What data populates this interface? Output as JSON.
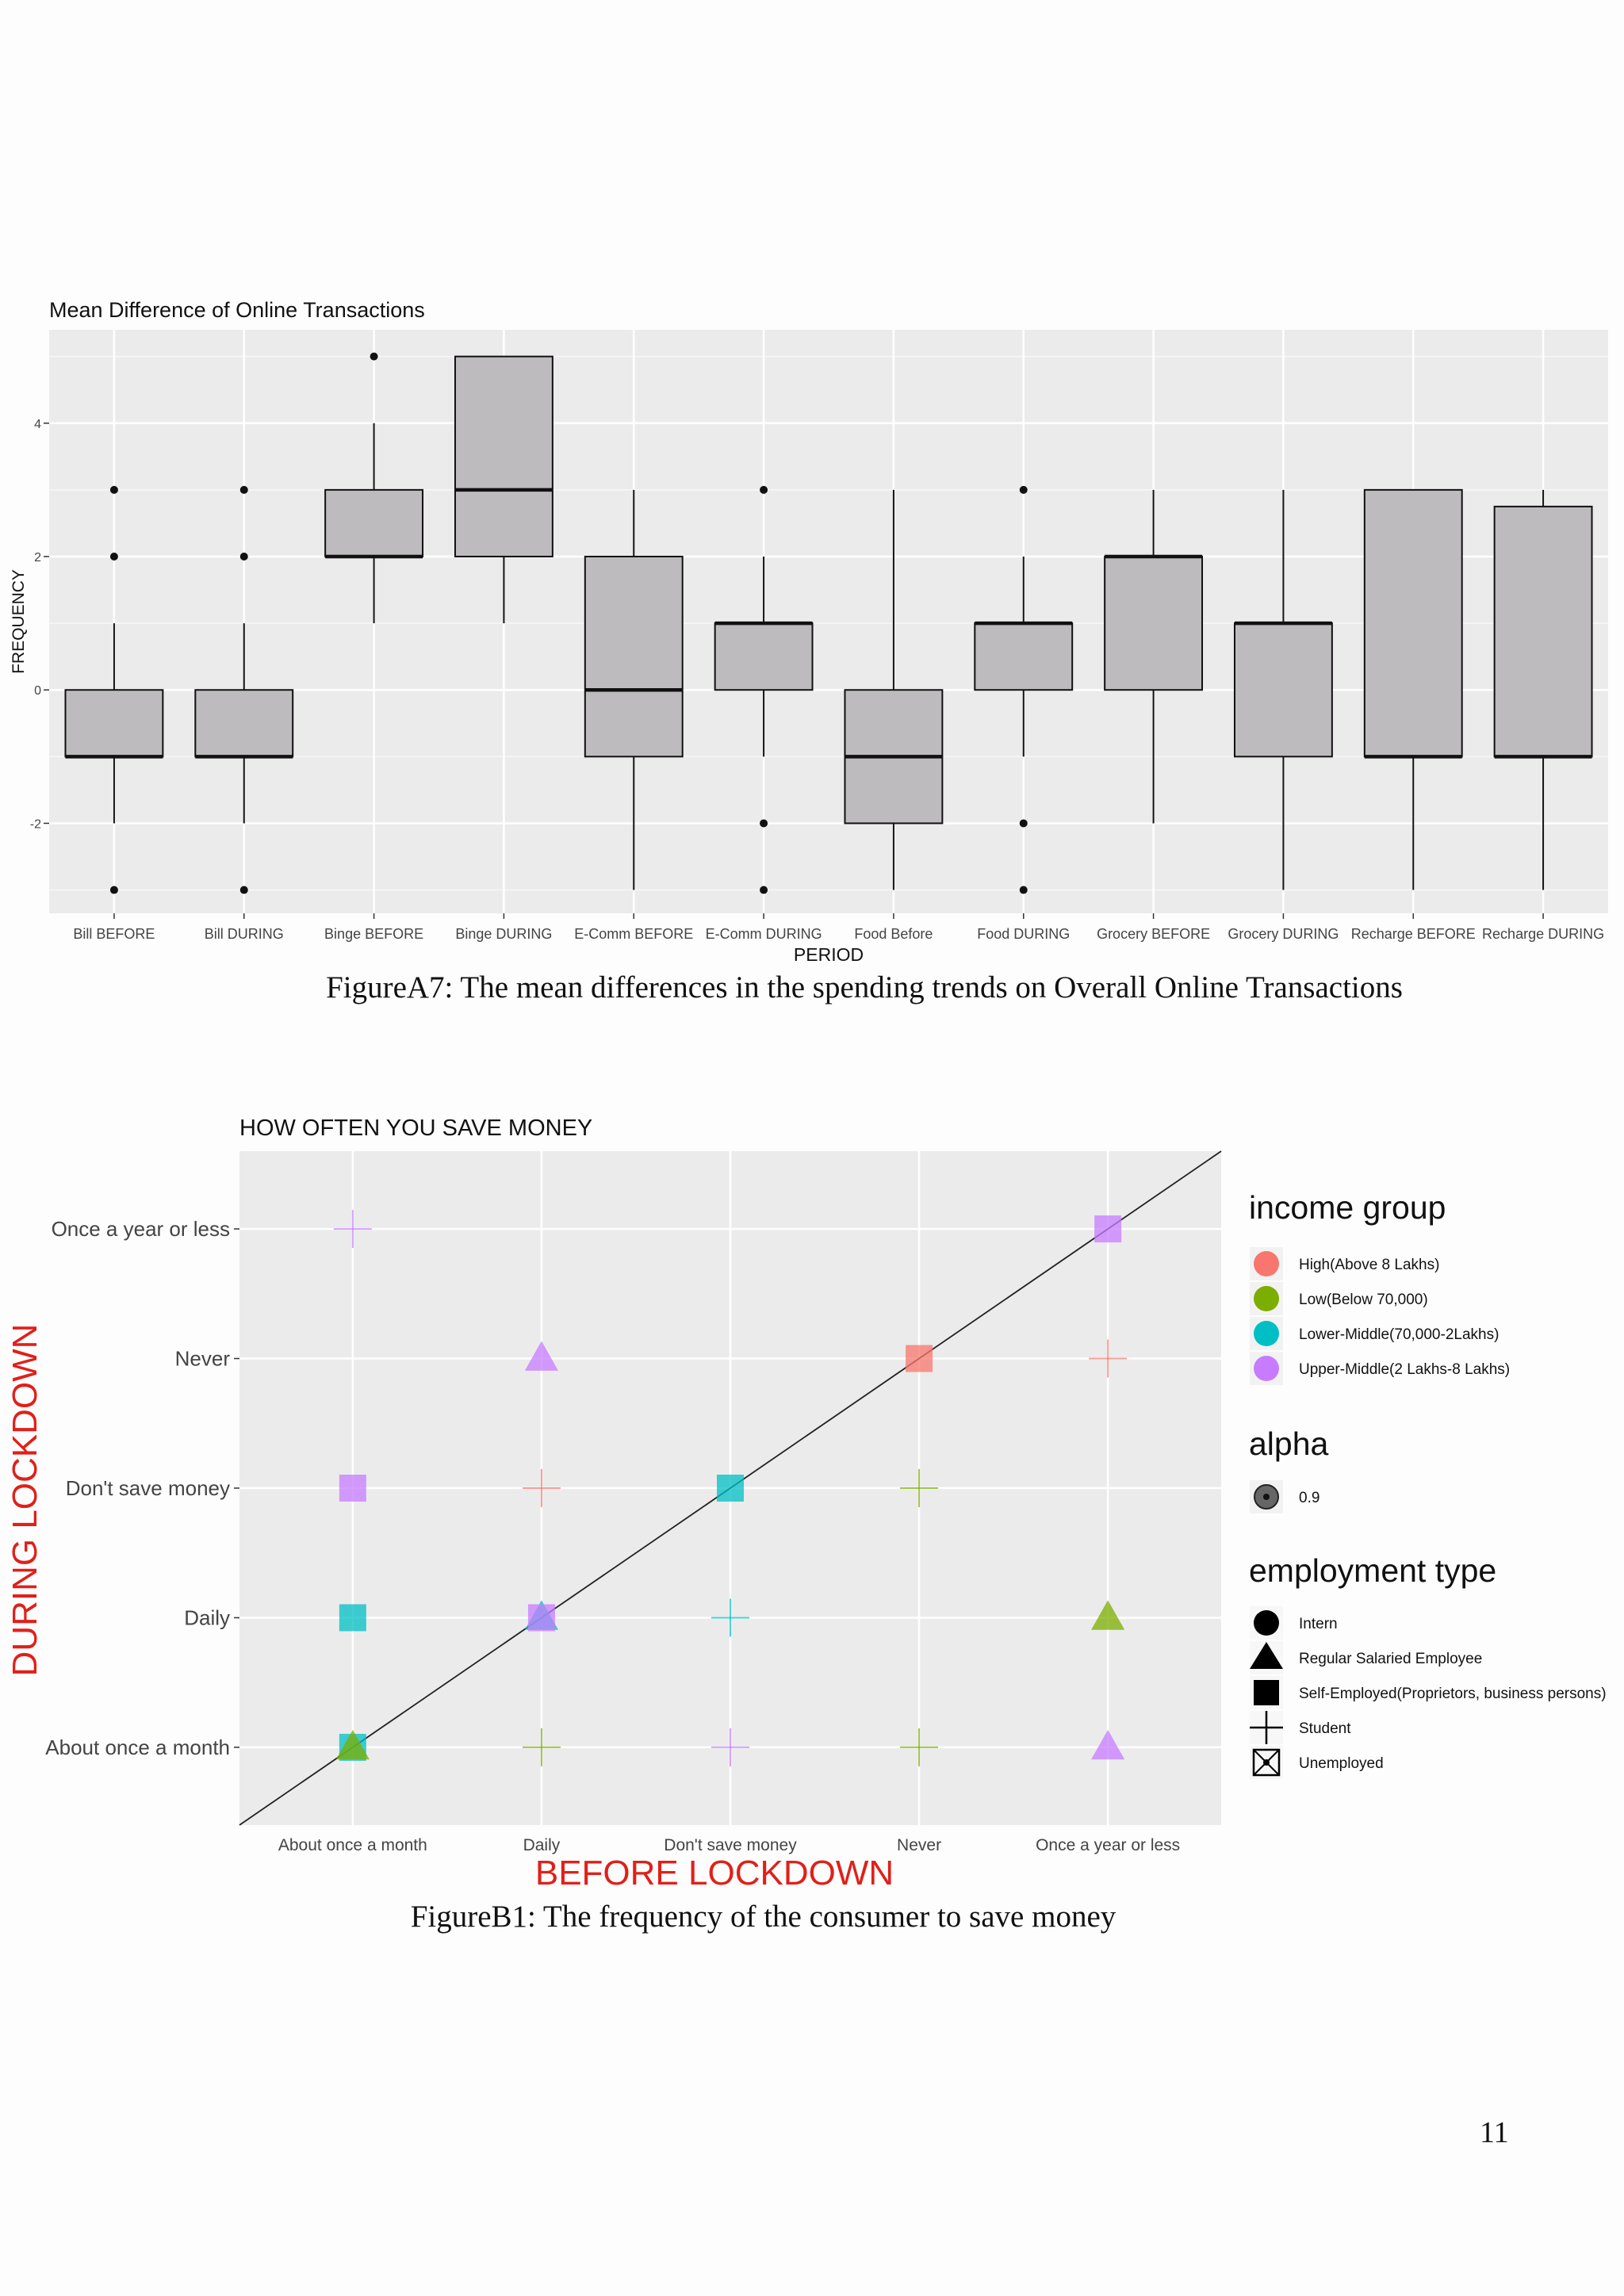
{
  "figures": [
    {
      "caption": "FigureA7: The mean differences in the spending trends on Overall Online Transactions",
      "chart_data": {
        "type": "box",
        "title": "Mean Difference of Online Transactions",
        "xlabel": "PERIOD",
        "ylabel": "FREQUENCY",
        "ylim": [
          -3.35,
          5.4
        ],
        "yticks": [
          -2,
          0,
          2,
          4
        ],
        "grid": true,
        "categories": [
          "Bill BEFORE",
          "Bill DURING",
          "Binge BEFORE",
          "Binge DURING",
          "E-Comm BEFORE",
          "E-Comm DURING",
          "Food Before",
          "Food DURING",
          "Grocery BEFORE",
          "Grocery DURING",
          "Recharge BEFORE",
          "Recharge DURING"
        ],
        "boxes": [
          {
            "lower_whisker": -2,
            "q1": -1,
            "median": -1,
            "q3": 0,
            "upper_whisker": 1,
            "outliers": [
              3,
              2,
              -3
            ]
          },
          {
            "lower_whisker": -2,
            "q1": -1,
            "median": -1,
            "q3": 0,
            "upper_whisker": 1,
            "outliers": [
              3,
              2,
              -3
            ]
          },
          {
            "lower_whisker": 1,
            "q1": 2,
            "median": 2,
            "q3": 3,
            "upper_whisker": 4,
            "outliers": [
              5
            ]
          },
          {
            "lower_whisker": 1,
            "q1": 2,
            "median": 3,
            "q3": 5,
            "upper_whisker": 5,
            "outliers": []
          },
          {
            "lower_whisker": -3,
            "q1": -1,
            "median": 0,
            "q3": 2,
            "upper_whisker": 3,
            "outliers": []
          },
          {
            "lower_whisker": -1,
            "q1": 0,
            "median": 1,
            "q3": 1,
            "upper_whisker": 2,
            "outliers": [
              3,
              -2,
              -3
            ]
          },
          {
            "lower_whisker": -3,
            "q1": -2,
            "median": -1,
            "q3": 0,
            "upper_whisker": 3,
            "outliers": []
          },
          {
            "lower_whisker": -1,
            "q1": 0,
            "median": 1,
            "q3": 1,
            "upper_whisker": 2,
            "outliers": [
              3,
              -2,
              -3
            ]
          },
          {
            "lower_whisker": -2,
            "q1": 0,
            "median": 2,
            "q3": 2,
            "upper_whisker": 3,
            "outliers": []
          },
          {
            "lower_whisker": -3,
            "q1": -1,
            "median": 1,
            "q3": 1,
            "upper_whisker": 3,
            "outliers": []
          },
          {
            "lower_whisker": -3,
            "q1": -1,
            "median": -1,
            "q3": 3,
            "upper_whisker": 3,
            "outliers": []
          },
          {
            "lower_whisker": -3,
            "q1": -1,
            "median": -1,
            "q3": 2.75,
            "upper_whisker": 3,
            "outliers": []
          }
        ],
        "colors": {
          "box_fill": "#bdbbbd",
          "panel": "#ebebeb",
          "grid": "#ffffff"
        }
      }
    },
    {
      "caption": "FigureB1: The frequency of the consumer to save money",
      "chart_data": {
        "type": "scatter",
        "title": "HOW OFTEN YOU SAVE MONEY",
        "xlabel": "BEFORE LOCKDOWN",
        "ylabel": "DURING LOCKDOWN",
        "categories": [
          "About once a month",
          "Daily",
          "Don't save money",
          "Never",
          "Once a year or less"
        ],
        "x_categories": [
          "About once a month",
          "Daily",
          "Don't save money",
          "Never",
          "Once a year or less"
        ],
        "y_categories": [
          "About once a month",
          "Daily",
          "Don't save money",
          "Never",
          "Once a year or less"
        ],
        "grid": true,
        "reference_line": "diagonal y = x",
        "legend_placement": "right",
        "legend": {
          "income_title": "income group",
          "income": [
            {
              "label": "High(Above 8 Lakhs)",
              "color": "#f8766d"
            },
            {
              "label": "Low(Below 70,000)",
              "color": "#7cae00"
            },
            {
              "label": "Lower-Middle(70,000-2Lakhs)",
              "color": "#00bfc4"
            },
            {
              "label": "Upper-Middle(2 Lakhs-8 Lakhs)",
              "color": "#c77cff"
            }
          ],
          "alpha_title": "alpha",
          "alpha": [
            {
              "label": "0.9"
            }
          ],
          "employment_title": "employment type",
          "employment": [
            {
              "label": "Intern",
              "shape": "circle"
            },
            {
              "label": "Regular Salaried Employee",
              "shape": "triangle"
            },
            {
              "label": "Self-Employed(Proprietors, business persons)",
              "shape": "square"
            },
            {
              "label": "Student",
              "shape": "plus"
            },
            {
              "label": "Unemployed",
              "shape": "boxed-x"
            }
          ]
        },
        "points": [
          {
            "x": "About once a month",
            "y": "Once a year or less",
            "income": "Upper-Middle(2 Lakhs-8 Lakhs)",
            "employment": "Student",
            "size": "large"
          },
          {
            "x": "About once a month",
            "y": "Don't save money",
            "income": "Upper-Middle(2 Lakhs-8 Lakhs)",
            "employment": "Self-Employed(Proprietors, business persons)",
            "size": "large"
          },
          {
            "x": "About once a month",
            "y": "Daily",
            "income": "Lower-Middle(70,000-2Lakhs)",
            "employment": "Self-Employed(Proprietors, business persons)",
            "size": "large"
          },
          {
            "x": "About once a month",
            "y": "About once a month",
            "income": "Lower-Middle(70,000-2Lakhs)",
            "employment": "Self-Employed(Proprietors, business persons)",
            "size": "large"
          },
          {
            "x": "About once a month",
            "y": "About once a month",
            "income": "Low(Below 70,000)",
            "employment": "Regular Salaried Employee",
            "size": "large"
          },
          {
            "x": "Daily",
            "y": "Never",
            "income": "Upper-Middle(2 Lakhs-8 Lakhs)",
            "employment": "Regular Salaried Employee",
            "size": "large"
          },
          {
            "x": "Daily",
            "y": "Don't save money",
            "income": "High(Above 8 Lakhs)",
            "employment": "Student",
            "size": "large"
          },
          {
            "x": "Daily",
            "y": "Daily",
            "income": "Lower-Middle(70,000-2Lakhs)",
            "employment": "Regular Salaried Employee",
            "size": "large"
          },
          {
            "x": "Daily",
            "y": "Daily",
            "income": "Upper-Middle(2 Lakhs-8 Lakhs)",
            "employment": "Self-Employed(Proprietors, business persons)",
            "size": "large"
          },
          {
            "x": "Daily",
            "y": "About once a month",
            "income": "Low(Below 70,000)",
            "employment": "Student",
            "size": "large"
          },
          {
            "x": "Don't save money",
            "y": "Don't save money",
            "income": "Lower-Middle(70,000-2Lakhs)",
            "employment": "Self-Employed(Proprietors, business persons)",
            "size": "large"
          },
          {
            "x": "Don't save money",
            "y": "Daily",
            "income": "Lower-Middle(70,000-2Lakhs)",
            "employment": "Student",
            "size": "large"
          },
          {
            "x": "Don't save money",
            "y": "About once a month",
            "income": "Upper-Middle(2 Lakhs-8 Lakhs)",
            "employment": "Student",
            "size": "large"
          },
          {
            "x": "Never",
            "y": "Never",
            "income": "High(Above 8 Lakhs)",
            "employment": "Self-Employed(Proprietors, business persons)",
            "size": "large"
          },
          {
            "x": "Never",
            "y": "Don't save money",
            "income": "Low(Below 70,000)",
            "employment": "Student",
            "size": "large"
          },
          {
            "x": "Never",
            "y": "About once a month",
            "income": "Low(Below 70,000)",
            "employment": "Student",
            "size": "large"
          },
          {
            "x": "Once a year or less",
            "y": "Once a year or less",
            "income": "Upper-Middle(2 Lakhs-8 Lakhs)",
            "employment": "Self-Employed(Proprietors, business persons)",
            "size": "large"
          },
          {
            "x": "Once a year or less",
            "y": "Never",
            "income": "High(Above 8 Lakhs)",
            "employment": "Student",
            "size": "large"
          },
          {
            "x": "Once a year or less",
            "y": "Daily",
            "income": "Low(Below 70,000)",
            "employment": "Regular Salaried Employee",
            "size": "large"
          },
          {
            "x": "Once a year or less",
            "y": "About once a month",
            "income": "Upper-Middle(2 Lakhs-8 Lakhs)",
            "employment": "Regular Salaried Employee",
            "size": "large"
          }
        ]
      }
    }
  ],
  "page_number": "11"
}
